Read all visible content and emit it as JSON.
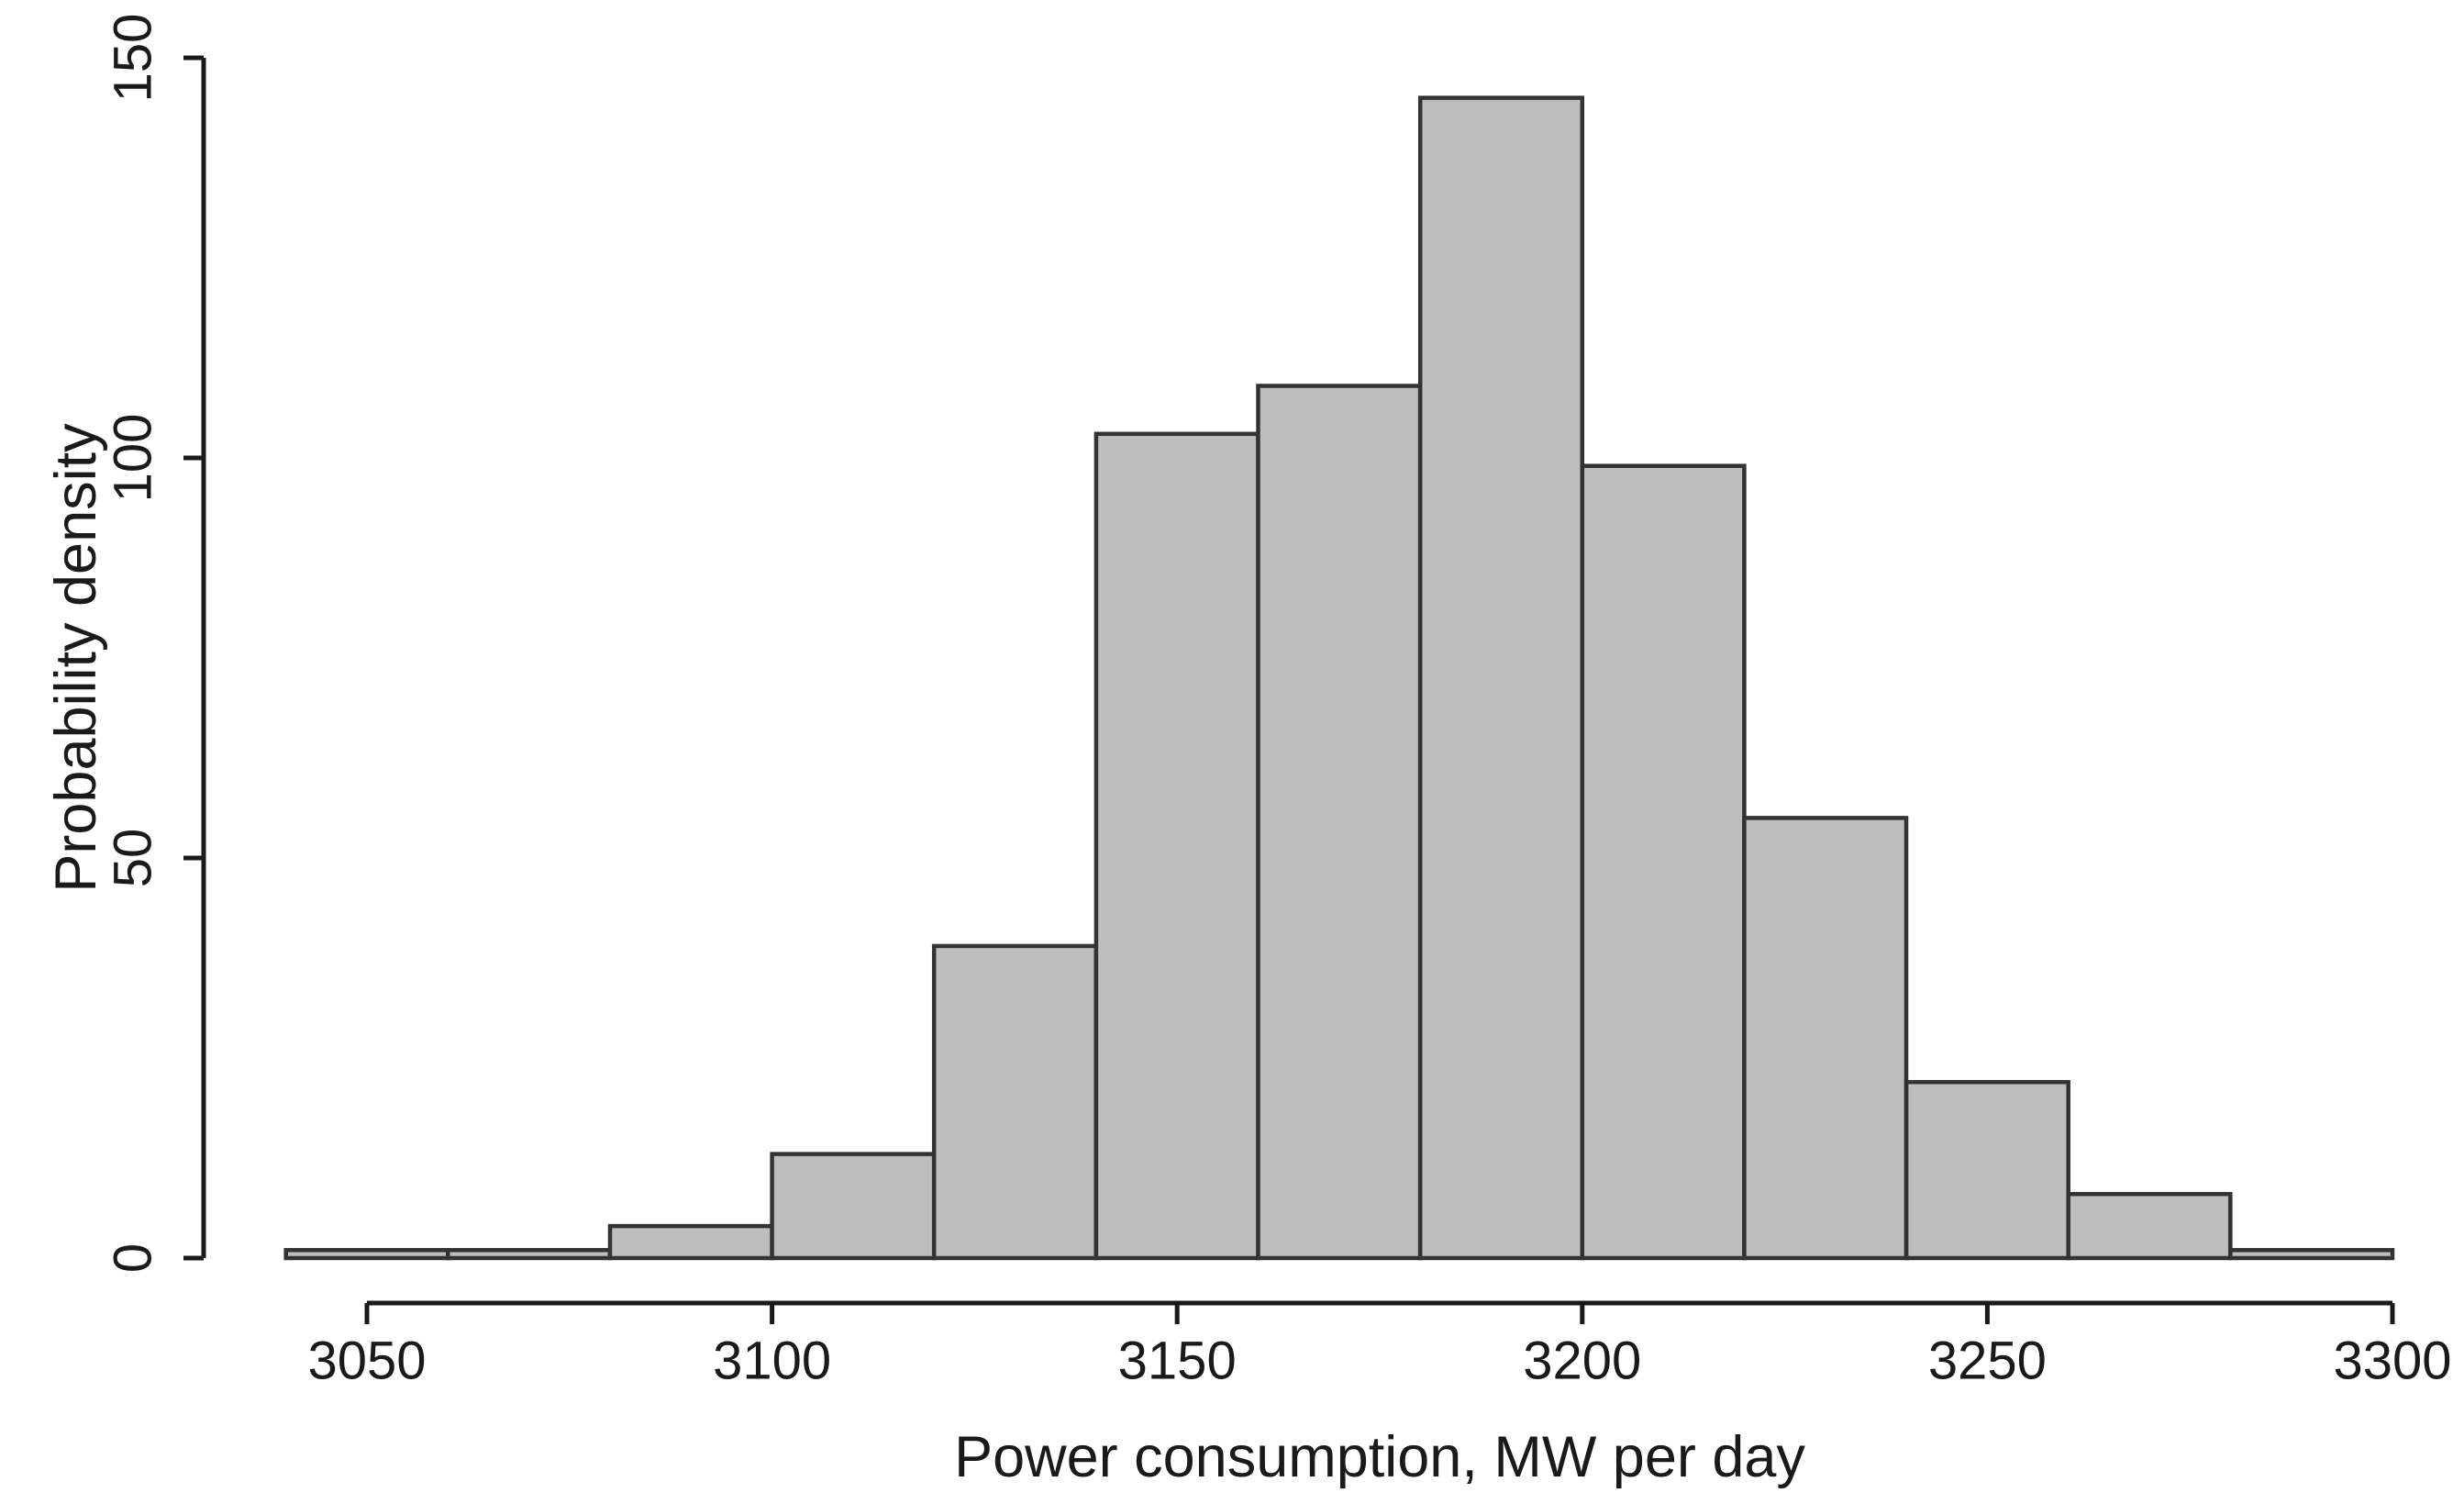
{
  "figure": {
    "background": "#ffffff"
  },
  "chart_data": {
    "type": "bar",
    "subtype": "histogram",
    "title": "",
    "xlabel": "Power consumption, MW per day",
    "ylabel": "Probability density",
    "bin_edges": [
      3040,
      3060,
      3080,
      3100,
      3120,
      3140,
      3160,
      3180,
      3200,
      3220,
      3240,
      3260,
      3280,
      3300
    ],
    "values": [
      1,
      1,
      4,
      13,
      39,
      103,
      109,
      145,
      99,
      55,
      22,
      8,
      1
    ],
    "x_ticks": [
      3050,
      3100,
      3150,
      3200,
      3250,
      3300
    ],
    "y_ticks": [
      0,
      50,
      100,
      150
    ],
    "xlim": [
      3040,
      3300
    ],
    "ylim": [
      0,
      150
    ],
    "grid": false,
    "legend": null,
    "colors": {
      "bar_fill": "#bebebe",
      "bar_border": "#333333",
      "axis": "#1a1a1a",
      "text": "#1a1a1a"
    }
  }
}
